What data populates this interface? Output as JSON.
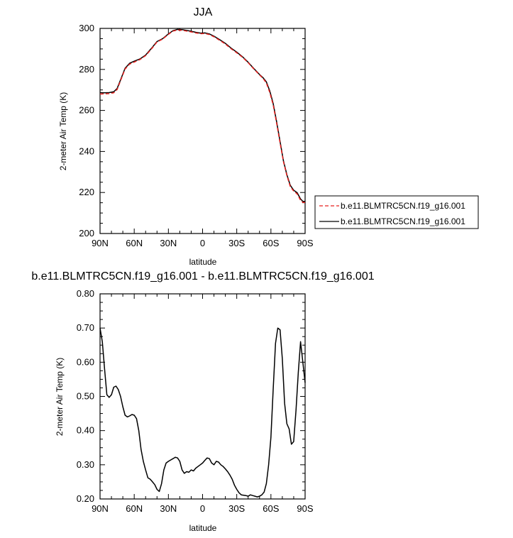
{
  "chart_data": [
    {
      "type": "line",
      "title": "JJA",
      "xlabel": "latitude",
      "ylabel": "2-meter Air Temp (K)",
      "xlim": [
        90,
        -90
      ],
      "ylim": [
        200,
        300
      ],
      "x_ticks": [
        90,
        60,
        30,
        0,
        -30,
        -60,
        -90
      ],
      "x_tick_labels": [
        "90N",
        "60N",
        "30N",
        "0",
        "30S",
        "60S",
        "90S"
      ],
      "y_ticks": [
        200,
        220,
        240,
        260,
        280,
        300
      ],
      "y_tick_labels": [
        "200",
        "220",
        "240",
        "260",
        "280",
        "300"
      ],
      "legend_position": "right",
      "x": [
        90,
        86,
        82,
        78,
        75,
        72,
        68,
        64,
        60,
        55,
        50,
        45,
        40,
        35,
        30,
        26,
        22,
        18,
        14,
        10,
        6,
        2,
        -2,
        -6,
        -10,
        -15,
        -20,
        -25,
        -30,
        -35,
        -40,
        -45,
        -50,
        -53,
        -56,
        -59,
        -62,
        -65,
        -68,
        -71,
        -74,
        -77,
        -80,
        -83,
        -86,
        -88,
        -90
      ],
      "series": [
        {
          "name": "b.e11.BLMTRC5CN.f19_g16.001",
          "color": "#e8201e",
          "dash": "dashed",
          "values": [
            268.0,
            268.1,
            268.2,
            268.6,
            270.2,
            274.5,
            280.2,
            282.6,
            283.6,
            284.8,
            286.7,
            289.9,
            293.4,
            294.8,
            297.1,
            298.7,
            299.2,
            299.1,
            298.7,
            298.3,
            297.8,
            297.4,
            297.5,
            297.0,
            295.9,
            294.2,
            292.4,
            290.1,
            288.1,
            286.0,
            283.3,
            280.2,
            277.3,
            275.7,
            273.4,
            268.8,
            262.7,
            253.7,
            244.2,
            235.0,
            228.3,
            222.9,
            220.7,
            219.3,
            216.2,
            215.2,
            215.1
          ]
        },
        {
          "name": "b.e11.BLMTRC5CN.f19_g16.001",
          "color": "#000000",
          "dash": "solid",
          "values": [
            268.7,
            268.6,
            268.7,
            269.1,
            270.7,
            274.9,
            280.6,
            283.0,
            284.0,
            285.1,
            287.0,
            290.2,
            293.6,
            295.0,
            297.3,
            298.9,
            299.5,
            299.4,
            299.0,
            298.6,
            298.1,
            297.7,
            297.8,
            297.3,
            296.2,
            294.5,
            292.7,
            290.4,
            288.4,
            286.2,
            283.5,
            280.4,
            277.5,
            276.0,
            273.9,
            269.5,
            263.4,
            254.4,
            244.9,
            235.4,
            228.7,
            223.5,
            221.1,
            219.9,
            216.8,
            215.7,
            215.6
          ]
        }
      ]
    },
    {
      "type": "line",
      "title": "b.e11.BLMTRC5CN.f19_g16.001 - b.e11.BLMTRC5CN.f19_g16.001",
      "xlabel": "latitude",
      "ylabel": "2-meter Air Temp (K)",
      "xlim": [
        90,
        -90
      ],
      "ylim": [
        0.2,
        0.8
      ],
      "x_ticks": [
        90,
        60,
        30,
        0,
        -30,
        -60,
        -90
      ],
      "x_tick_labels": [
        "90N",
        "60N",
        "30N",
        "0",
        "30S",
        "60S",
        "90S"
      ],
      "y_ticks": [
        0.2,
        0.3,
        0.4,
        0.5,
        0.6,
        0.7,
        0.8
      ],
      "y_tick_labels": [
        "0.20",
        "0.30",
        "0.40",
        "0.50",
        "0.60",
        "0.70",
        "0.80"
      ],
      "x": [
        90,
        88,
        86,
        84,
        82,
        80,
        78,
        76,
        74,
        72,
        70,
        68,
        66,
        64,
        62,
        60,
        58,
        56,
        54,
        52,
        50,
        48,
        46,
        44,
        42,
        40,
        38,
        36,
        34,
        32,
        30,
        28,
        26,
        24,
        22,
        20,
        18,
        16,
        14,
        12,
        10,
        8,
        6,
        4,
        2,
        0,
        -2,
        -4,
        -6,
        -8,
        -10,
        -12,
        -14,
        -16,
        -18,
        -20,
        -22,
        -24,
        -26,
        -28,
        -30,
        -32,
        -34,
        -36,
        -38,
        -40,
        -42,
        -44,
        -46,
        -48,
        -50,
        -52,
        -54,
        -56,
        -58,
        -60,
        -62,
        -64,
        -66,
        -68,
        -70,
        -72,
        -74,
        -76,
        -78,
        -80,
        -82,
        -84,
        -86,
        -88,
        -90
      ],
      "series": [
        {
          "color": "#000000",
          "dash": "solid",
          "values": [
            0.7,
            0.66,
            0.58,
            0.505,
            0.497,
            0.505,
            0.527,
            0.53,
            0.52,
            0.5,
            0.47,
            0.445,
            0.44,
            0.443,
            0.447,
            0.445,
            0.435,
            0.4,
            0.345,
            0.31,
            0.285,
            0.262,
            0.258,
            0.25,
            0.242,
            0.228,
            0.222,
            0.245,
            0.285,
            0.305,
            0.31,
            0.314,
            0.318,
            0.322,
            0.32,
            0.31,
            0.285,
            0.275,
            0.28,
            0.278,
            0.285,
            0.282,
            0.29,
            0.295,
            0.3,
            0.305,
            0.313,
            0.32,
            0.318,
            0.305,
            0.3,
            0.31,
            0.308,
            0.3,
            0.295,
            0.288,
            0.28,
            0.27,
            0.258,
            0.24,
            0.228,
            0.218,
            0.212,
            0.211,
            0.21,
            0.208,
            0.212,
            0.21,
            0.208,
            0.206,
            0.208,
            0.212,
            0.22,
            0.245,
            0.3,
            0.38,
            0.52,
            0.655,
            0.7,
            0.695,
            0.61,
            0.48,
            0.42,
            0.405,
            0.36,
            0.368,
            0.46,
            0.57,
            0.66,
            0.6,
            0.54
          ]
        }
      ]
    }
  ]
}
